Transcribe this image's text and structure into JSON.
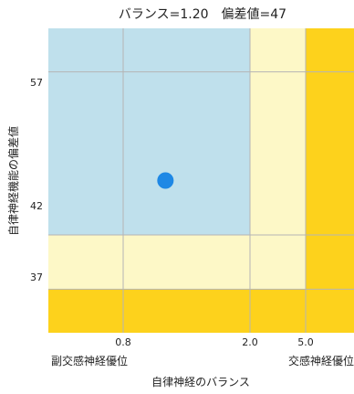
{
  "chart_data": {
    "type": "scatter",
    "title": "バランス=1.20　偏差値=47",
    "xlabel": "自律神経のバランス",
    "ylabel": "自律神経機能の偏差値",
    "x_ticks": [
      "0.8",
      "2.0",
      "5.0"
    ],
    "y_ticks": [
      "37",
      "42",
      "57"
    ],
    "x_end_labels": {
      "left": "副交感神経優位",
      "right": "交感神経優位"
    },
    "ylim": [
      33,
      61
    ],
    "grid": true,
    "colors": {
      "zone_blue": "#bfe0ec",
      "zone_light_yellow": "#fdf8c7",
      "zone_yellow": "#fdd21c",
      "grid": "#b5b5b5",
      "point": "#1e88e5"
    },
    "points": [
      {
        "x": 1.2,
        "y": 47
      }
    ]
  }
}
